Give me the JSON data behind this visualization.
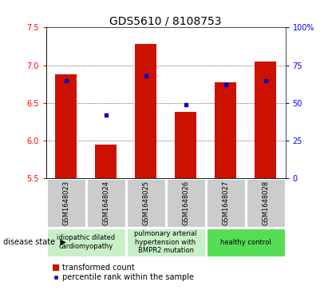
{
  "title": "GDS5610 / 8108753",
  "samples": [
    "GSM1648023",
    "GSM1648024",
    "GSM1648025",
    "GSM1648026",
    "GSM1648027",
    "GSM1648028"
  ],
  "transformed_count": [
    6.88,
    5.95,
    7.28,
    6.38,
    6.77,
    7.05
  ],
  "percentile_rank": [
    65,
    42,
    68,
    49,
    62,
    65
  ],
  "ylim_left": [
    5.5,
    7.5
  ],
  "ylim_right": [
    0,
    100
  ],
  "yticks_left": [
    5.5,
    6.0,
    6.5,
    7.0,
    7.5
  ],
  "yticks_right": [
    0,
    25,
    50,
    75,
    100
  ],
  "bar_color": "#cc1100",
  "dot_color": "#0000cc",
  "bar_bottom": 5.5,
  "disease_groups": [
    {
      "label": "idiopathic dilated\ncardiomyopathy",
      "color": "#c8f0c8",
      "indices": [
        0,
        1
      ]
    },
    {
      "label": "pulmonary arterial\nhypertension with\nBMPR2 mutation",
      "color": "#c8f0c8",
      "indices": [
        2,
        3
      ]
    },
    {
      "label": "healthy control",
      "color": "#55dd55",
      "indices": [
        4,
        5
      ]
    }
  ],
  "disease_state_label": "disease state",
  "legend_red": "transformed count",
  "legend_blue": "percentile rank within the sample",
  "plot_bg_color": "#ffffff",
  "sample_box_color": "#cccccc",
  "title_fontsize": 10,
  "tick_fontsize": 7,
  "sample_fontsize": 6,
  "disease_fontsize": 6,
  "legend_fontsize": 7
}
